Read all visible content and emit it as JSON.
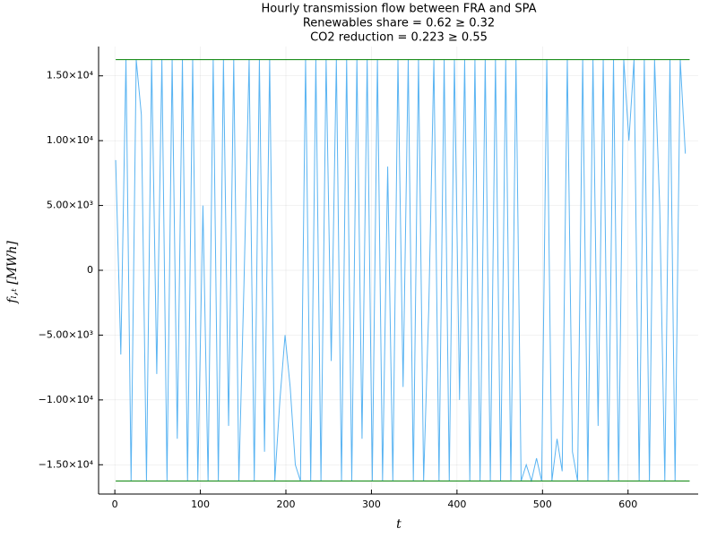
{
  "chart_data": {
    "type": "line",
    "title": [
      "Hourly transmission flow between FRA and SPA",
      "Renewables share = 0.62 ≥ 0.32",
      "CO2 reduction = 0.223 ≥ 0.55"
    ],
    "x_label": "t",
    "y_label": "fₗ,ₜ [MWh]",
    "xlim": [
      -19,
      682
    ],
    "ylim": [
      -17260,
      17260
    ],
    "xticks": [
      0,
      100,
      200,
      300,
      400,
      500,
      600
    ],
    "yticks": [
      {
        "value": -15000,
        "label": "−1.50×10⁴"
      },
      {
        "value": -10000,
        "label": "−1.00×10⁴"
      },
      {
        "value": -5000,
        "label": "−5.00×10³"
      },
      0,
      {
        "value": 5000,
        "label": "5.00×10³"
      },
      {
        "value": 10000,
        "label": "1.00×10⁴"
      },
      {
        "value": 15000,
        "label": "1.50×10⁴"
      }
    ],
    "grid": true,
    "series": [
      {
        "color": "#5ab4f2",
        "x": [
          1,
          7,
          13,
          19,
          25,
          31,
          37,
          43,
          49,
          55,
          61,
          67,
          73,
          79,
          85,
          91,
          97,
          103,
          109,
          115,
          121,
          127,
          133,
          139,
          145,
          151,
          157,
          163,
          169,
          175,
          181,
          187,
          193,
          199,
          205,
          211,
          217,
          223,
          229,
          235,
          241,
          247,
          253,
          259,
          265,
          271,
          277,
          283,
          289,
          295,
          301,
          307,
          313,
          319,
          325,
          331,
          337,
          343,
          349,
          355,
          361,
          367,
          373,
          379,
          385,
          391,
          397,
          403,
          409,
          415,
          421,
          427,
          433,
          439,
          445,
          451,
          457,
          463,
          469,
          475,
          481,
          487,
          493,
          499,
          505,
          511,
          517,
          523,
          529,
          535,
          541,
          547,
          553,
          559,
          565,
          571,
          577,
          583,
          589,
          595,
          601,
          607,
          613,
          619,
          625,
          631,
          637,
          643,
          649,
          655,
          661,
          667
        ],
        "values": [
          8500,
          -6500,
          16250,
          -16250,
          16250,
          12000,
          -16250,
          16250,
          -8000,
          16250,
          -16250,
          16250,
          -13000,
          16250,
          -16250,
          16250,
          -16250,
          5000,
          -16250,
          16250,
          -16250,
          16250,
          -12000,
          16250,
          -16250,
          -1000,
          16250,
          -16250,
          16250,
          -14000,
          16250,
          -16250,
          -10000,
          -5000,
          -9000,
          -15000,
          -16250,
          16250,
          -16250,
          16250,
          -16250,
          16250,
          -7000,
          16250,
          -16250,
          16250,
          -16250,
          16250,
          -13000,
          16250,
          -16250,
          16250,
          -16250,
          8000,
          -16250,
          16250,
          -9000,
          16250,
          -16250,
          16250,
          -16250,
          -3000,
          16250,
          -16250,
          16250,
          -16250,
          16250,
          -10000,
          16250,
          -16250,
          16250,
          -16250,
          16250,
          -16250,
          16250,
          -16250,
          16250,
          -16250,
          16250,
          -16250,
          -15000,
          -16250,
          -14500,
          -16250,
          16250,
          -16250,
          -13000,
          -15500,
          16250,
          -14000,
          -16250,
          16250,
          -16250,
          16250,
          -12000,
          16250,
          -16250,
          16250,
          -16250,
          16250,
          10000,
          16250,
          -16250,
          16250,
          -16250,
          16250,
          5000,
          -16250,
          16250,
          -16250,
          16250,
          9000
        ]
      },
      {
        "color": "#008000",
        "x": [
          1,
          672
        ],
        "values": [
          16250,
          16250
        ]
      },
      {
        "color": "#008000",
        "x": [
          1,
          672
        ],
        "values": [
          -16250,
          -16250
        ]
      }
    ]
  }
}
